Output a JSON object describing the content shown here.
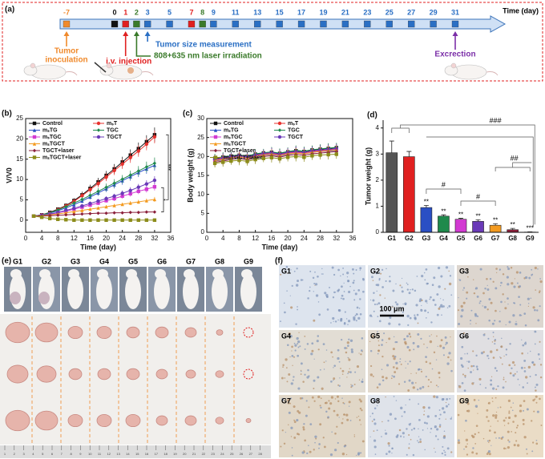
{
  "timeline": {
    "panel_label": "(a)",
    "axis_label": "Time (day)",
    "days": [
      -7,
      0,
      1,
      2,
      3,
      5,
      7,
      8,
      9,
      11,
      13,
      15,
      17,
      19,
      21,
      23,
      25,
      27,
      29,
      31
    ],
    "day_colors": [
      "#f08a2c",
      "#111111",
      "#e02020",
      "#3a7a2a",
      "#2a6fc4",
      "#2a6fc4",
      "#e02020",
      "#3a7a2a",
      "#2a6fc4",
      "#2a6fc4",
      "#2a6fc4",
      "#2a6fc4",
      "#2a6fc4",
      "#2a6fc4",
      "#2a6fc4",
      "#2a6fc4",
      "#2a6fc4",
      "#2a6fc4",
      "#2a6fc4",
      "#2a6fc4"
    ],
    "events": [
      {
        "lines": [
          "Tumor",
          "inoculation"
        ],
        "day": -7,
        "color": "#f08a2c"
      },
      {
        "lines": [
          "i.v. injection"
        ],
        "day": 1,
        "color": "#e02020"
      },
      {
        "lines": [
          "Tumor size measurement"
        ],
        "day": 3,
        "color": "#2a6fc4"
      },
      {
        "lines": [
          "808+635 nm laser irradiation"
        ],
        "day": 2,
        "color": "#3a7a2a"
      },
      {
        "lines": [
          "Excrection"
        ],
        "day": 31,
        "color": "#7b2fa8"
      }
    ]
  },
  "chart_data": [
    {
      "type": "line",
      "panel_label": "(b)",
      "xlabel": "Time (day)",
      "ylabel": "V/V0",
      "x": [
        2,
        4,
        6,
        8,
        10,
        12,
        14,
        16,
        18,
        20,
        22,
        24,
        26,
        28,
        30,
        32
      ],
      "xlim": [
        0,
        36
      ],
      "xticks": [
        0,
        4,
        8,
        12,
        16,
        20,
        24,
        28,
        32,
        36
      ],
      "ylim": [
        -3,
        25
      ],
      "yticks": [
        0,
        5,
        10,
        15,
        20,
        25
      ],
      "annotations": [
        "*",
        "***"
      ],
      "series": [
        {
          "name": "Control",
          "color": "#111111",
          "values": [
            1,
            1.3,
            1.9,
            2.7,
            3.6,
            4.8,
            6.2,
            7.8,
            9.4,
            11,
            12.6,
            14.3,
            16,
            17.6,
            19.3,
            21
          ],
          "errors": [
            0.1,
            0.2,
            0.3,
            0.4,
            0.5,
            0.6,
            0.8,
            0.9,
            1,
            1.1,
            1.2,
            1.3,
            1.4,
            1.5,
            1.6,
            1.8
          ]
        },
        {
          "name": "mₛT",
          "color": "#e8322e",
          "values": [
            1,
            1.3,
            1.8,
            2.6,
            3.5,
            4.6,
            6,
            7.5,
            9,
            10.6,
            12.2,
            13.8,
            15.4,
            17,
            18.7,
            20.5
          ],
          "errors": [
            0.1,
            0.2,
            0.3,
            0.4,
            0.5,
            0.6,
            0.7,
            0.8,
            0.9,
            1,
            1.1,
            1.2,
            1.3,
            1.4,
            1.5,
            1.6
          ]
        },
        {
          "name": "mₛTG",
          "color": "#2a4fc4",
          "values": [
            1,
            1.2,
            1.7,
            2.3,
            3,
            3.8,
            4.7,
            5.7,
            6.7,
            7.7,
            8.7,
            9.7,
            10.7,
            11.7,
            12.6,
            13.5
          ],
          "errors": [
            0.1,
            0.1,
            0.2,
            0.3,
            0.4,
            0.5,
            0.5,
            0.6,
            0.7,
            0.8,
            0.9,
            1,
            1,
            1.1,
            1.2,
            1.3
          ]
        },
        {
          "name": "TGC",
          "color": "#1f8a4c",
          "values": [
            1,
            1.3,
            1.8,
            2.5,
            3.3,
            4.2,
            5.1,
            6.1,
            7.1,
            8.1,
            9.1,
            10.1,
            11.1,
            12.1,
            13.1,
            14
          ],
          "errors": [
            0.1,
            0.2,
            0.2,
            0.3,
            0.4,
            0.5,
            0.6,
            0.7,
            0.8,
            0.9,
            1,
            1,
            1.1,
            1.2,
            1.3,
            1.4
          ]
        },
        {
          "name": "mₛTGC",
          "color": "#d23ad2",
          "values": [
            1,
            1.1,
            1.4,
            1.8,
            2.2,
            2.7,
            3.2,
            3.7,
            4.2,
            4.8,
            5.3,
            5.9,
            6.5,
            7.1,
            7.6,
            8.2
          ],
          "errors": [
            0.1,
            0.1,
            0.2,
            0.2,
            0.3,
            0.3,
            0.4,
            0.4,
            0.5,
            0.5,
            0.6,
            0.6,
            0.7,
            0.7,
            0.8,
            0.9
          ]
        },
        {
          "name": "TGCT",
          "color": "#6a3ab8",
          "values": [
            1,
            1.2,
            1.5,
            1.9,
            2.4,
            2.9,
            3.5,
            4.1,
            4.7,
            5.3,
            5.9,
            6.6,
            7.3,
            8.1,
            8.9,
            9.8
          ],
          "errors": [
            0.1,
            0.1,
            0.2,
            0.2,
            0.3,
            0.3,
            0.4,
            0.5,
            0.5,
            0.6,
            0.6,
            0.7,
            0.8,
            0.8,
            0.9,
            1
          ]
        },
        {
          "name": "mₛTGCT",
          "color": "#f39a1f",
          "values": [
            1,
            1.1,
            1.3,
            1.5,
            1.8,
            2.1,
            2.4,
            2.7,
            3,
            3.3,
            3.6,
            3.9,
            4.2,
            4.5,
            4.8,
            5.1
          ],
          "errors": [
            0.1,
            0.1,
            0.1,
            0.2,
            0.2,
            0.2,
            0.3,
            0.3,
            0.3,
            0.4,
            0.4,
            0.4,
            0.5,
            0.5,
            0.5,
            0.6
          ]
        },
        {
          "name": "TGCT+laser",
          "color": "#8a1f3a",
          "values": [
            1,
            1,
            1.1,
            1.2,
            1.3,
            1.4,
            1.5,
            1.6,
            1.7,
            1.7,
            1.8,
            1.8,
            1.9,
            1.9,
            2,
            2
          ],
          "errors": [
            0.1,
            0.1,
            0.1,
            0.1,
            0.1,
            0.2,
            0.2,
            0.2,
            0.2,
            0.2,
            0.2,
            0.2,
            0.2,
            0.3,
            0.3,
            0.3
          ]
        },
        {
          "name": "mₛTGCT+laser",
          "color": "#8c8c1a",
          "values": [
            1,
            0.7,
            0.4,
            0.2,
            0.1,
            0,
            0,
            0,
            0,
            0,
            0,
            0,
            0,
            0,
            0,
            0
          ],
          "errors": [
            0.1,
            0.1,
            0.1,
            0.1,
            0.1,
            0,
            0,
            0,
            0,
            0,
            0,
            0,
            0,
            0,
            0,
            0
          ]
        }
      ]
    },
    {
      "type": "line",
      "panel_label": "(c)",
      "xlabel": "Time (day)",
      "ylabel": "Body weight (g)",
      "x": [
        2,
        4,
        6,
        8,
        10,
        12,
        14,
        16,
        18,
        20,
        22,
        24,
        26,
        28,
        30,
        32
      ],
      "xlim": [
        0,
        36
      ],
      "xticks": [
        0,
        4,
        8,
        12,
        16,
        20,
        24,
        28,
        32,
        36
      ],
      "ylim": [
        0,
        30
      ],
      "yticks": [
        0,
        5,
        10,
        15,
        20,
        25,
        30
      ],
      "series": [
        {
          "name": "Control",
          "color": "#111111",
          "values": [
            19.5,
            19.8,
            20.1,
            20.3,
            20.0,
            20.6,
            20.9,
            21.1,
            20.8,
            21.2,
            21.5,
            21.3,
            21.7,
            21.9,
            22.1,
            22.3
          ],
          "errors": [
            1.1,
            1.2,
            1.0,
            1.3,
            1.1,
            1.2,
            1.0,
            1.3,
            1.2,
            1.1,
            1.3,
            1.2,
            1.1,
            1.2,
            1.3,
            1.2
          ]
        },
        {
          "name": "mₛT",
          "color": "#e8322e",
          "values": [
            19.2,
            19.5,
            19.9,
            20.2,
            19.8,
            20.3,
            20.7,
            20.9,
            20.5,
            21.0,
            21.2,
            21.0,
            21.4,
            21.6,
            21.8,
            22.0
          ],
          "errors": [
            1.1,
            1.2,
            1.0,
            1.3,
            1.1,
            1.2,
            1.0,
            1.3,
            1.2,
            1.1,
            1.3,
            1.2,
            1.1,
            1.2,
            1.3,
            1.2
          ]
        },
        {
          "name": "mₛTG",
          "color": "#2a4fc4",
          "values": [
            18.8,
            19.1,
            19.5,
            19.8,
            19.4,
            19.9,
            20.3,
            20.5,
            20.1,
            20.6,
            20.9,
            20.7,
            21.1,
            21.3,
            21.4,
            21.6
          ],
          "errors": [
            1.1,
            1.2,
            1.0,
            1.3,
            1.1,
            1.2,
            1.0,
            1.3,
            1.2,
            1.1,
            1.3,
            1.2,
            1.1,
            1.2,
            1.3,
            1.2
          ]
        },
        {
          "name": "TGC",
          "color": "#1f8a4c",
          "values": [
            19.6,
            19.9,
            20.2,
            20.4,
            20.1,
            20.7,
            21.0,
            21.2,
            20.9,
            21.3,
            21.6,
            21.4,
            21.8,
            22.0,
            22.2,
            22.4
          ],
          "errors": [
            1.1,
            1.2,
            1.0,
            1.3,
            1.1,
            1.2,
            1.0,
            1.3,
            1.2,
            1.1,
            1.3,
            1.2,
            1.1,
            1.2,
            1.3,
            1.2
          ]
        },
        {
          "name": "mₛTGC",
          "color": "#d23ad2",
          "values": [
            19.0,
            19.3,
            19.7,
            20.0,
            19.6,
            20.1,
            20.5,
            20.7,
            20.3,
            20.8,
            21.0,
            20.8,
            21.2,
            21.4,
            21.6,
            21.8
          ],
          "errors": [
            1.1,
            1.2,
            1.0,
            1.3,
            1.1,
            1.2,
            1.0,
            1.3,
            1.2,
            1.1,
            1.3,
            1.2,
            1.1,
            1.2,
            1.3,
            1.2
          ]
        },
        {
          "name": "TGCT",
          "color": "#6a3ab8",
          "values": [
            19.3,
            19.6,
            20.0,
            20.2,
            19.9,
            20.4,
            20.8,
            21.0,
            20.6,
            21.1,
            21.3,
            21.1,
            21.5,
            21.7,
            21.9,
            22.1
          ],
          "errors": [
            1.1,
            1.2,
            1.0,
            1.3,
            1.1,
            1.2,
            1.0,
            1.3,
            1.2,
            1.1,
            1.3,
            1.2,
            1.1,
            1.2,
            1.3,
            1.2
          ]
        },
        {
          "name": "mₛTGCT",
          "color": "#f39a1f",
          "values": [
            18.9,
            19.2,
            19.6,
            19.9,
            19.5,
            20.0,
            20.4,
            20.6,
            20.2,
            20.7,
            20.9,
            20.7,
            21.1,
            21.3,
            21.5,
            21.7
          ],
          "errors": [
            1.1,
            1.2,
            1.0,
            1.3,
            1.1,
            1.2,
            1.0,
            1.3,
            1.2,
            1.1,
            1.3,
            1.2,
            1.1,
            1.2,
            1.3,
            1.2
          ]
        },
        {
          "name": "TGCT+laser",
          "color": "#8a1f3a",
          "values": [
            18.5,
            18.8,
            19.2,
            19.5,
            19.1,
            19.6,
            20.0,
            20.2,
            19.8,
            20.3,
            20.5,
            20.3,
            20.7,
            20.9,
            21.1,
            21.3
          ],
          "errors": [
            1.1,
            1.2,
            1.0,
            1.3,
            1.1,
            1.2,
            1.0,
            1.3,
            1.2,
            1.1,
            1.3,
            1.2,
            1.1,
            1.2,
            1.3,
            1.2
          ]
        },
        {
          "name": "mₛTGCT+laser",
          "color": "#8c8c1a",
          "values": [
            18.2,
            18.5,
            18.8,
            19.0,
            18.7,
            19.2,
            19.5,
            19.7,
            19.4,
            19.8,
            20.0,
            19.8,
            20.2,
            20.4,
            20.5,
            20.6
          ],
          "errors": [
            1.1,
            1.2,
            1.0,
            1.3,
            1.1,
            1.2,
            1.0,
            1.3,
            1.2,
            1.1,
            1.3,
            1.2,
            1.1,
            1.2,
            1.3,
            1.2
          ]
        }
      ]
    },
    {
      "type": "bar",
      "panel_label": "(d)",
      "ylabel": "Tumor weight (g)",
      "categories": [
        "G1",
        "G2",
        "G3",
        "G4",
        "G5",
        "G6",
        "G7",
        "G8",
        "G9"
      ],
      "values": [
        3.05,
        2.9,
        0.95,
        0.62,
        0.5,
        0.42,
        0.27,
        0.1,
        0.01
      ],
      "errors": [
        0.45,
        0.2,
        0.08,
        0.05,
        0.04,
        0.06,
        0.06,
        0.05,
        0.01
      ],
      "colors": [
        "#555555",
        "#e02020",
        "#2a4fc4",
        "#1f8a4c",
        "#d23ad2",
        "#6a3ab8",
        "#f39a1f",
        "#8a1f3a",
        "#8c8c1a"
      ],
      "significance": [
        null,
        null,
        "**",
        "**",
        "**",
        "**",
        "**",
        "**",
        "***"
      ],
      "annotations": [
        "###",
        "##",
        "#",
        "#"
      ],
      "ylim": [
        0,
        4.3
      ],
      "yticks": [
        0,
        1,
        2,
        3,
        4
      ]
    }
  ],
  "photos": {
    "panel_label": "(e)",
    "groups": [
      "G1",
      "G2",
      "G3",
      "G4",
      "G5",
      "G6",
      "G7",
      "G8",
      "G9"
    ],
    "ruler": [
      1,
      2,
      3,
      4,
      5,
      6,
      7,
      8,
      9,
      10,
      11,
      12,
      13,
      14,
      15,
      16,
      17,
      18,
      19,
      20,
      21,
      22,
      23,
      24,
      25,
      26,
      27,
      28
    ]
  },
  "micrographs": {
    "panel_label": "(f)",
    "groups": [
      "G1",
      "G2",
      "G3",
      "G4",
      "G5",
      "G6",
      "G7",
      "G8",
      "G9"
    ],
    "scale_bar": "100 μm"
  }
}
